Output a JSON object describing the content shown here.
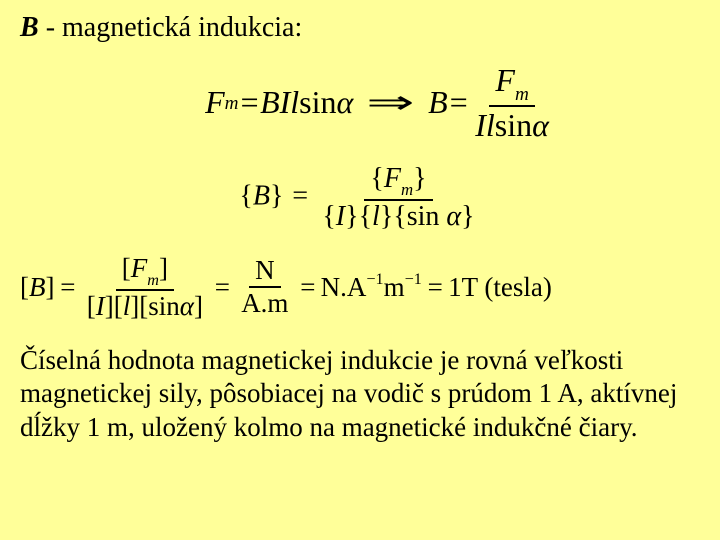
{
  "heading": {
    "variable": "B",
    "dash": " - ",
    "text": "magnetická indukcia:"
  },
  "formula1": {
    "left_F": "F",
    "left_F_sub": "m",
    "eq": " = ",
    "BIl": "BIl",
    "sin": "sin",
    "alpha": "α",
    "arrow": "⇒",
    "right_B": "B",
    "frac_num_F": "F",
    "frac_num_sub": "m",
    "frac_den_Il": "Il",
    "frac_den_sin": "sin",
    "frac_den_alpha": "α"
  },
  "formula2": {
    "lb": "{",
    "rb": "}",
    "B": "B",
    "eq": "=",
    "F": "F",
    "F_sub": "m",
    "I": "I",
    "l": "l",
    "sin": "sin",
    "alpha": "α"
  },
  "formula3": {
    "lbr": "[",
    "rbr": "]",
    "B": "B",
    "eq": "=",
    "F": "F",
    "F_sub": "m",
    "I": "I",
    "l": "l",
    "sin": "sin",
    "alpha": "α",
    "N": "N",
    "Am": "A.m",
    "NA": "N.A",
    "m1": "−1",
    "m": "m",
    "m2": "−1",
    "one": "1",
    "T": "T",
    "tesla": " (tesla)"
  },
  "paragraph": {
    "text": "Číselná hodnota magnetickej indukcie je rovná veľkosti magnetickej sily, pôsobiacej na vodič s prúdom 1 A, ak­tívnej dĺžky 1 m,  uložený kolmo na magnetické indukč­né čiary."
  },
  "style": {
    "background": "#ffff99",
    "text_color": "#000000",
    "heading_fontsize": 28,
    "formula_fontsize": 32,
    "paragraph_fontsize": 27,
    "font_family": "Times New Roman"
  }
}
